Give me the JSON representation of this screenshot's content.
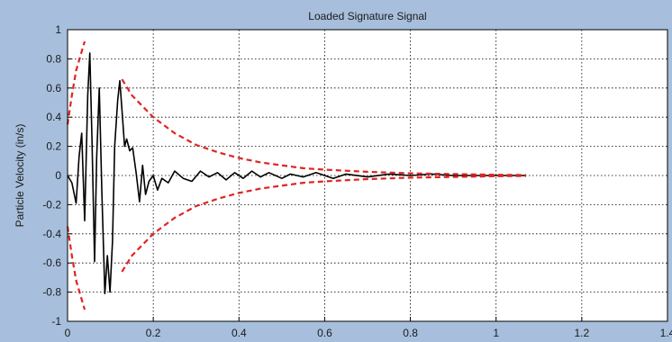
{
  "colors": {
    "figure_background": "#a7bfdc",
    "plot_background": "#ffffff",
    "signal": "#000000",
    "envelope": "#e02424",
    "grid": "#000000"
  },
  "chart_data": {
    "type": "line",
    "title": "Loaded Signature Signal",
    "xlabel": "",
    "ylabel": "Particle Velocity (in/s)",
    "xlim": [
      0,
      1.4
    ],
    "ylim": [
      -1,
      1
    ],
    "grid": true,
    "legend": "none",
    "x_ticks": [
      "0",
      "0.2",
      "0.4",
      "0.6",
      "0.8",
      "1",
      "1.2",
      "1.4"
    ],
    "y_ticks": [
      "1",
      "0.8",
      "0.6",
      "0.4",
      "0.2",
      "0",
      "-0.2",
      "-0.4",
      "-0.6",
      "-0.8",
      "-1"
    ],
    "series": [
      {
        "style": "solid-black",
        "points": [
          [
            0.0,
            0.0
          ],
          [
            0.01,
            -0.05
          ],
          [
            0.02,
            -0.19
          ],
          [
            0.027,
            0.13
          ],
          [
            0.033,
            0.29
          ],
          [
            0.04,
            -0.31
          ],
          [
            0.047,
            0.55
          ],
          [
            0.052,
            0.84
          ],
          [
            0.057,
            0.25
          ],
          [
            0.063,
            -0.59
          ],
          [
            0.068,
            0.12
          ],
          [
            0.074,
            0.6
          ],
          [
            0.08,
            -0.12
          ],
          [
            0.087,
            -0.81
          ],
          [
            0.093,
            -0.55
          ],
          [
            0.099,
            -0.8
          ],
          [
            0.105,
            -0.45
          ],
          [
            0.11,
            0.2
          ],
          [
            0.117,
            0.52
          ],
          [
            0.122,
            0.65
          ],
          [
            0.127,
            0.45
          ],
          [
            0.133,
            0.2
          ],
          [
            0.138,
            0.25
          ],
          [
            0.145,
            0.17
          ],
          [
            0.152,
            0.19
          ],
          [
            0.16,
            0.02
          ],
          [
            0.168,
            -0.18
          ],
          [
            0.175,
            0.07
          ],
          [
            0.182,
            -0.13
          ],
          [
            0.19,
            -0.04
          ],
          [
            0.2,
            0.0
          ],
          [
            0.21,
            -0.1
          ],
          [
            0.22,
            -0.02
          ],
          [
            0.235,
            -0.05
          ],
          [
            0.25,
            0.03
          ],
          [
            0.27,
            -0.02
          ],
          [
            0.29,
            -0.04
          ],
          [
            0.31,
            0.03
          ],
          [
            0.33,
            -0.01
          ],
          [
            0.35,
            0.02
          ],
          [
            0.37,
            -0.03
          ],
          [
            0.39,
            0.02
          ],
          [
            0.41,
            -0.02
          ],
          [
            0.43,
            0.03
          ],
          [
            0.45,
            -0.01
          ],
          [
            0.47,
            0.02
          ],
          [
            0.5,
            -0.02
          ],
          [
            0.52,
            0.01
          ],
          [
            0.55,
            -0.01
          ],
          [
            0.58,
            0.02
          ],
          [
            0.62,
            -0.02
          ],
          [
            0.65,
            0.01
          ],
          [
            0.7,
            -0.01
          ],
          [
            0.75,
            0.01
          ],
          [
            0.8,
            0.0
          ],
          [
            0.85,
            0.01
          ],
          [
            0.9,
            0.0
          ],
          [
            0.95,
            0.0
          ],
          [
            1.0,
            0.0
          ],
          [
            1.05,
            0.0
          ],
          [
            1.07,
            0.0
          ]
        ]
      },
      {
        "style": "dashed-red",
        "points": [
          [
            0.0,
            0.35
          ],
          [
            0.01,
            0.55
          ],
          [
            0.02,
            0.72
          ],
          [
            0.04,
            0.92
          ]
        ]
      },
      {
        "style": "dashed-red",
        "points": [
          [
            0.0,
            -0.35
          ],
          [
            0.01,
            -0.55
          ],
          [
            0.02,
            -0.72
          ],
          [
            0.04,
            -0.92
          ]
        ]
      },
      {
        "style": "dashed-red",
        "points": [
          [
            0.127,
            0.66
          ],
          [
            0.15,
            0.55
          ],
          [
            0.2,
            0.4
          ],
          [
            0.25,
            0.29
          ],
          [
            0.3,
            0.21
          ],
          [
            0.35,
            0.16
          ],
          [
            0.4,
            0.12
          ],
          [
            0.45,
            0.09
          ],
          [
            0.5,
            0.07
          ],
          [
            0.55,
            0.05
          ],
          [
            0.6,
            0.04
          ],
          [
            0.7,
            0.025
          ],
          [
            0.8,
            0.015
          ],
          [
            0.9,
            0.01
          ],
          [
            1.0,
            0.005
          ],
          [
            1.07,
            0.003
          ]
        ]
      },
      {
        "style": "dashed-red",
        "points": [
          [
            0.127,
            -0.66
          ],
          [
            0.15,
            -0.55
          ],
          [
            0.2,
            -0.4
          ],
          [
            0.25,
            -0.29
          ],
          [
            0.3,
            -0.21
          ],
          [
            0.35,
            -0.16
          ],
          [
            0.4,
            -0.12
          ],
          [
            0.45,
            -0.09
          ],
          [
            0.5,
            -0.07
          ],
          [
            0.55,
            -0.05
          ],
          [
            0.6,
            -0.04
          ],
          [
            0.7,
            -0.025
          ],
          [
            0.8,
            -0.015
          ],
          [
            0.9,
            -0.01
          ],
          [
            1.0,
            -0.005
          ],
          [
            1.07,
            -0.003
          ]
        ]
      }
    ]
  }
}
